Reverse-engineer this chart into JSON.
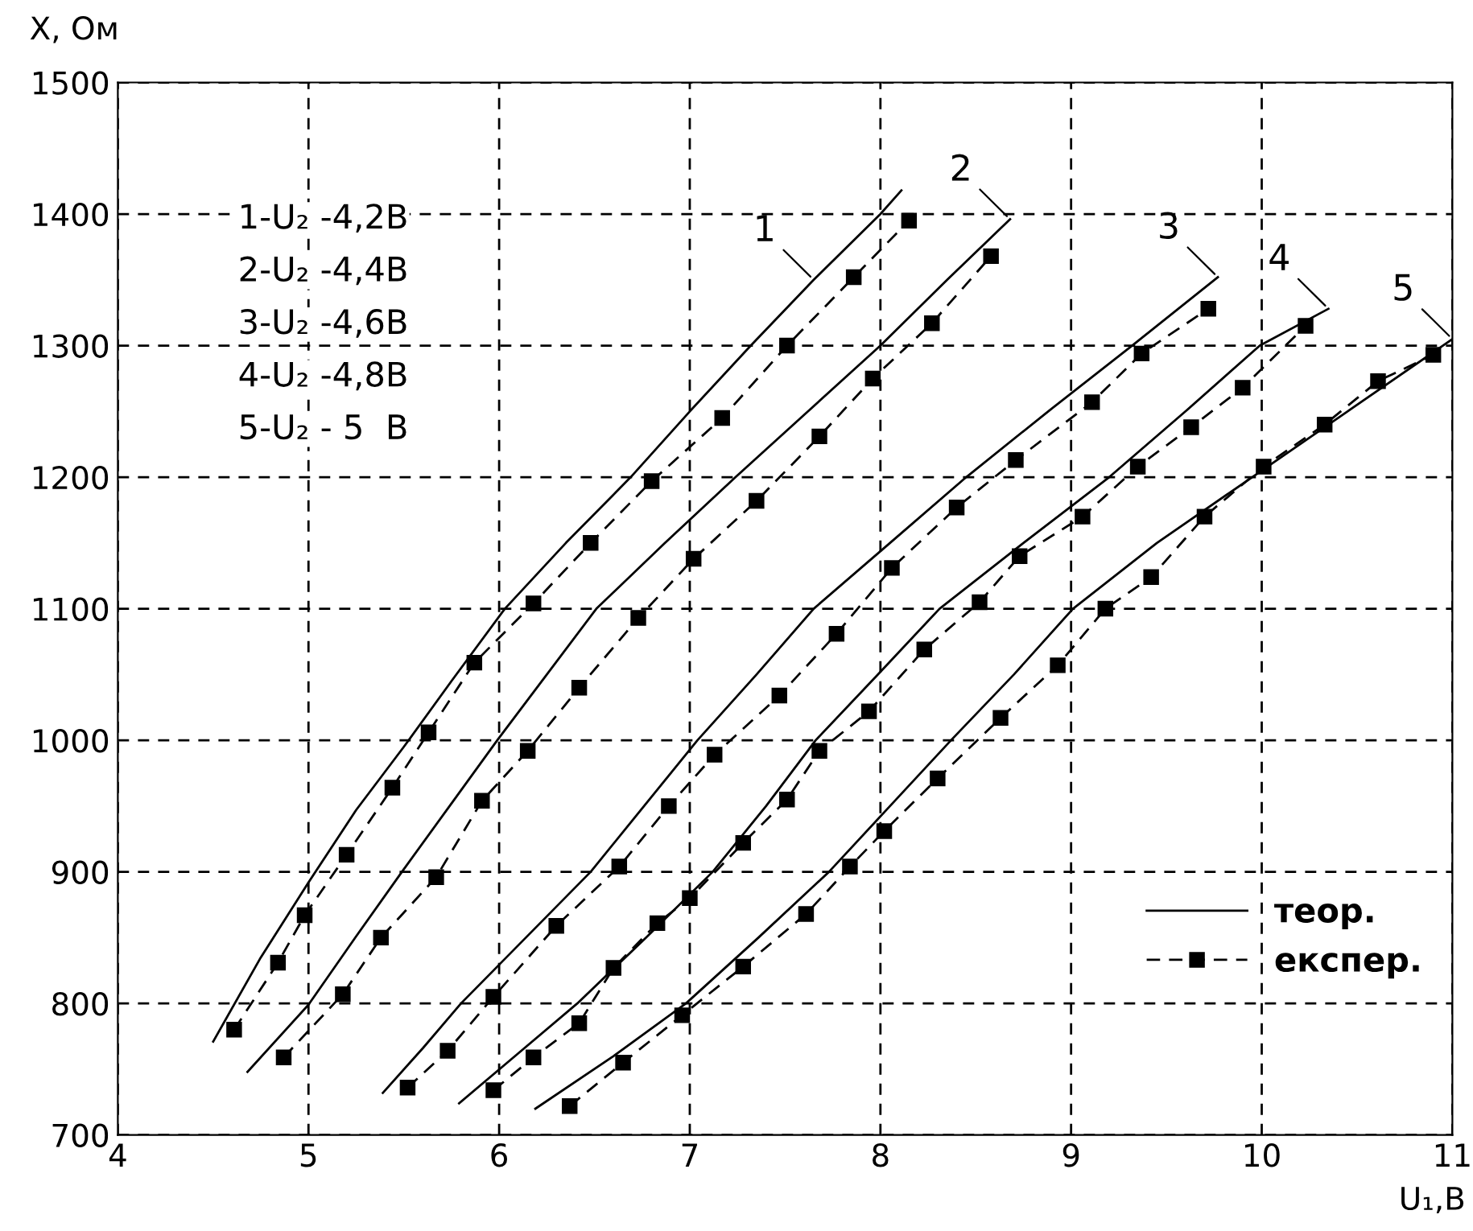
{
  "chart_data": {
    "type": "line",
    "xlabel": "U₁,В",
    "ylabel": "X, Ом",
    "xlim": [
      4,
      11
    ],
    "xticks": [
      4,
      5,
      6,
      7,
      8,
      9,
      10,
      11
    ],
    "ylim": [
      700,
      1500
    ],
    "yticks": [
      700,
      800,
      900,
      1000,
      1100,
      1200,
      1300,
      1400,
      1500
    ],
    "grid": true,
    "legend": "bottom right",
    "series": [
      {
        "name": "теор.",
        "color": "#000000",
        "line_style": "solid",
        "marker": "none",
        "x": [
          4.5,
          4.75,
          5.0,
          5.25,
          5.5,
          5.75,
          6.03,
          6.35,
          6.69,
          7.0,
          7.32,
          7.65,
          8.0,
          8.11
        ],
        "values": [
          771,
          835,
          892,
          947,
          995,
          1045,
          1100,
          1150,
          1200,
          1250,
          1300,
          1350,
          1400,
          1418
        ]
      },
      {
        "color": "#000000",
        "line_style": "solid",
        "marker": "none",
        "x": [
          4.68,
          5.0,
          5.25,
          5.49,
          5.75,
          5.99,
          6.25,
          6.51,
          6.87,
          7.24,
          7.62,
          8.0,
          8.35,
          8.68
        ],
        "values": [
          748,
          799,
          851,
          900,
          952,
          1000,
          1050,
          1100,
          1150,
          1200,
          1250,
          1300,
          1350,
          1396
        ]
      },
      {
        "color": "#000000",
        "line_style": "solid",
        "marker": "none",
        "x": [
          5.39,
          5.6,
          5.8,
          6.14,
          6.48,
          6.76,
          7.04,
          7.35,
          7.65,
          8.05,
          8.45,
          8.88,
          9.32,
          9.77
        ],
        "values": [
          732,
          766,
          800,
          850,
          900,
          950,
          1000,
          1050,
          1100,
          1150,
          1200,
          1250,
          1300,
          1352
        ]
      },
      {
        "color": "#000000",
        "line_style": "solid",
        "marker": "none",
        "x": [
          5.79,
          6.1,
          6.41,
          6.77,
          7.12,
          7.4,
          7.66,
          8.0,
          8.31,
          8.75,
          9.2,
          9.6,
          9.99,
          10.35
        ],
        "values": [
          724,
          762,
          800,
          850,
          900,
          950,
          1000,
          1052,
          1100,
          1150,
          1200,
          1250,
          1300,
          1328
        ]
      },
      {
        "color": "#000000",
        "line_style": "solid",
        "marker": "none",
        "x": [
          6.19,
          6.6,
          6.98,
          7.36,
          7.73,
          8.05,
          8.37,
          8.7,
          9.01,
          9.45,
          9.95,
          10.45,
          11.0
        ],
        "values": [
          720,
          760,
          800,
          850,
          900,
          950,
          1000,
          1050,
          1100,
          1150,
          1200,
          1250,
          1305
        ]
      },
      {
        "name": "експер.",
        "color": "#000000",
        "line_style": "dashed",
        "marker": "square",
        "x": [
          4.61,
          4.84,
          4.98,
          5.2,
          5.44,
          5.63,
          5.87,
          6.18,
          6.48,
          6.8,
          7.17,
          7.51,
          7.86,
          8.15
        ],
        "values": [
          780,
          831,
          867,
          913,
          964,
          1006,
          1059,
          1104,
          1150,
          1197,
          1245,
          1300,
          1352,
          1395
        ]
      },
      {
        "color": "#000000",
        "line_style": "dashed",
        "marker": "square",
        "x": [
          4.87,
          5.18,
          5.38,
          5.67,
          5.91,
          6.15,
          6.42,
          6.73,
          7.02,
          7.35,
          7.68,
          7.96,
          8.27,
          8.58
        ],
        "values": [
          759,
          807,
          850,
          896,
          954,
          992,
          1040,
          1093,
          1138,
          1182,
          1231,
          1275,
          1317,
          1368
        ]
      },
      {
        "color": "#000000",
        "line_style": "dashed",
        "marker": "square",
        "x": [
          5.52,
          5.73,
          5.97,
          6.3,
          6.63,
          6.89,
          7.13,
          7.47,
          7.77,
          8.06,
          8.4,
          8.71,
          9.11,
          9.37,
          9.72
        ],
        "values": [
          736,
          764,
          805,
          859,
          904,
          950,
          989,
          1034,
          1081,
          1131,
          1177,
          1213,
          1257,
          1294,
          1328
        ]
      },
      {
        "color": "#000000",
        "line_style": "dashed",
        "marker": "square",
        "x": [
          5.97,
          6.18,
          6.42,
          6.6,
          6.83,
          7.0,
          7.28,
          7.51,
          7.68,
          7.94,
          8.23,
          8.52,
          8.73,
          9.06,
          9.35,
          9.63,
          9.9,
          10.23
        ],
        "values": [
          734,
          759,
          785,
          827,
          861,
          880,
          922,
          955,
          992,
          1022,
          1069,
          1105,
          1140,
          1170,
          1208,
          1238,
          1268,
          1315
        ]
      },
      {
        "color": "#000000",
        "line_style": "dashed",
        "marker": "square",
        "x": [
          6.37,
          6.65,
          6.96,
          7.28,
          7.61,
          7.84,
          8.02,
          8.3,
          8.63,
          8.93,
          9.18,
          9.42,
          9.7,
          10.01,
          10.33,
          10.61,
          10.9
        ],
        "values": [
          722,
          755,
          791,
          828,
          868,
          904,
          931,
          971,
          1017,
          1057,
          1100,
          1124,
          1170,
          1208,
          1240,
          1273,
          1293
        ]
      }
    ],
    "annotations": [
      {
        "text": "1",
        "x": 7.65,
        "y": 1350
      },
      {
        "text": "2",
        "x": 8.68,
        "y": 1396
      },
      {
        "text": "3",
        "x": 9.77,
        "y": 1352
      },
      {
        "text": "4",
        "x": 10.35,
        "y": 1328
      },
      {
        "text": "5",
        "x": 11.0,
        "y": 1305
      },
      "1-U₂ -4,2В",
      "2-U₂ -4,4В",
      "3-U₂ -4,6В",
      "4-U₂ -4,8В",
      "5-U₂ - 5  В"
    ]
  }
}
